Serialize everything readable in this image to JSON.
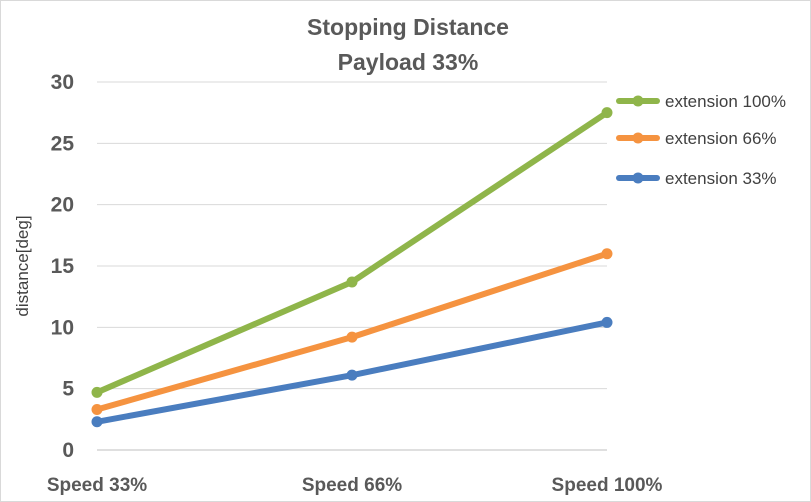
{
  "chart_data": {
    "type": "line",
    "title": "Stopping Distance",
    "subtitle": "Payload 33%",
    "xlabel": "",
    "ylabel": "distance[deg]",
    "categories": [
      "Speed 33%",
      "Speed 66%",
      "Speed 100%"
    ],
    "ylim": [
      0,
      30
    ],
    "yticks": [
      0,
      5,
      10,
      15,
      20,
      25,
      30
    ],
    "grid": true,
    "legend_position": "right",
    "series": [
      {
        "name": "extension 100%",
        "color": "#8fb54a",
        "values": [
          4.7,
          13.7,
          27.5
        ]
      },
      {
        "name": "extension 66%",
        "color": "#f59340",
        "values": [
          3.3,
          9.2,
          16.0
        ]
      },
      {
        "name": "extension 33%",
        "color": "#4a7dbf",
        "values": [
          2.3,
          6.1,
          10.4
        ]
      }
    ]
  }
}
